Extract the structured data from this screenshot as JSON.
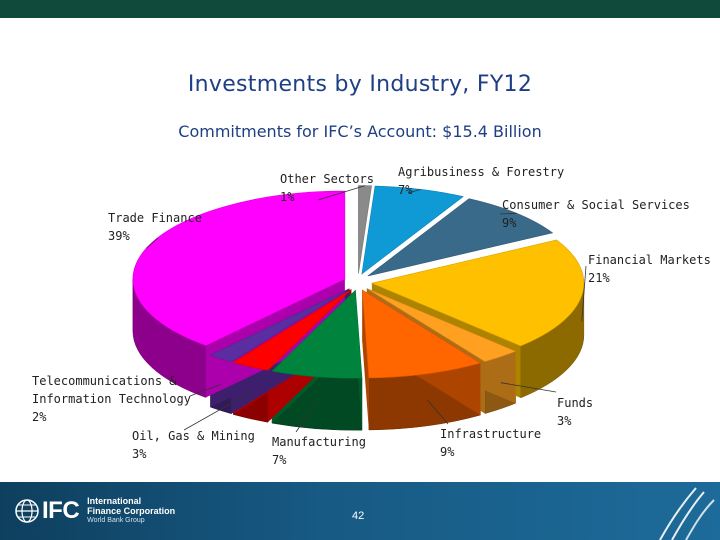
{
  "slide": {
    "title": "Investments by Industry, FY12",
    "subtitle": "Commitments for IFC’s Account: $15.4 Billion",
    "page_number": "42"
  },
  "footer": {
    "logo_mark": "IFC",
    "logo_line1": "International",
    "logo_line2": "Finance Corporation",
    "logo_line3": "World Bank Group",
    "background_color": "#175a84"
  },
  "chart_data": {
    "type": "pie",
    "title": "Investments by Industry, FY12",
    "subtitle": "Commitments for IFC’s Account: $15.4 Billion",
    "unit": "%",
    "three_d": true,
    "slices": [
      {
        "name": "Other Sectors",
        "value": 1,
        "label": "1%",
        "color": "#8a8a8a"
      },
      {
        "name": "Agribusiness & Forestry",
        "value": 7,
        "label": "7%",
        "color": "#0f9ad6"
      },
      {
        "name": "Consumer & Social Services",
        "value": 9,
        "label": "9%",
        "color": "#3a6a8a"
      },
      {
        "name": "Financial Markets",
        "value": 21,
        "label": "21%",
        "color": "#ffc000"
      },
      {
        "name": "Funds",
        "value": 3,
        "label": "3%",
        "color": "#ffa020"
      },
      {
        "name": "Infrastructure",
        "value": 9,
        "label": "9%",
        "color": "#ff6600"
      },
      {
        "name": "Manufacturing",
        "value": 7,
        "label": "7%",
        "color": "#00843d"
      },
      {
        "name": "Oil, Gas & Mining",
        "value": 3,
        "label": "3%",
        "color": "#ff0000"
      },
      {
        "name": "Telecommunications & Information Technology",
        "value": 2,
        "label": "2%",
        "color": "#5a2ea0"
      },
      {
        "name": "Trade Finance",
        "value": 39,
        "label": "39%",
        "color": "#ff00ff"
      }
    ],
    "legend": "none"
  }
}
